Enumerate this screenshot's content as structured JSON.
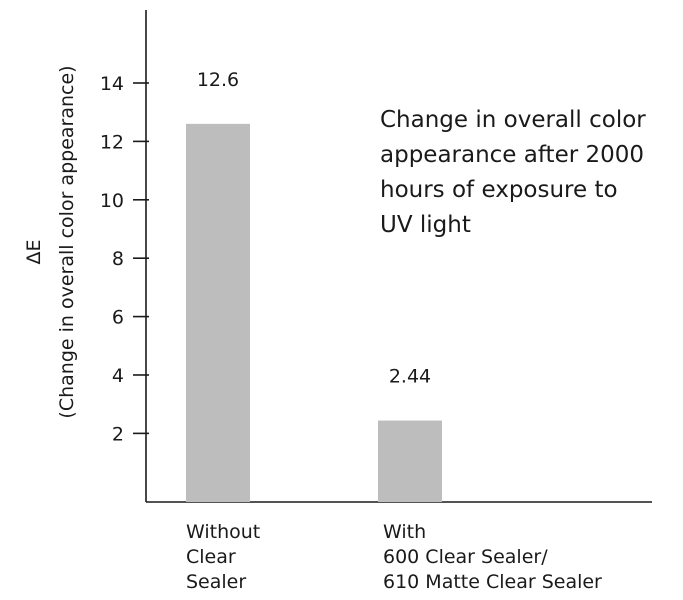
{
  "chart_data": {
    "type": "bar",
    "title_lines": [
      "Change in overall color",
      "appearance after 2000",
      "hours of exposure to",
      "UV light"
    ],
    "ylabel_lines": [
      "ΔE",
      "(Change in overall color appearance)"
    ],
    "categories": [
      {
        "lines": [
          "Without",
          "Clear",
          "Sealer"
        ]
      },
      {
        "lines": [
          "With",
          "600 Clear Sealer/",
          "610 Matte Clear Sealer"
        ]
      }
    ],
    "values": [
      12.6,
      2.44
    ],
    "data_labels": [
      "12.6",
      "2.44"
    ],
    "yticks": [
      2,
      4,
      6,
      8,
      10,
      12,
      14
    ],
    "ytick_labels": [
      "2",
      "4",
      "6",
      "8",
      "10",
      "12",
      "14"
    ],
    "ylim": [
      -0.35,
      16.5
    ],
    "bar_color": "#bdbdbd",
    "axis_color": "#1a1a1a",
    "grid": false,
    "legend": "none"
  }
}
